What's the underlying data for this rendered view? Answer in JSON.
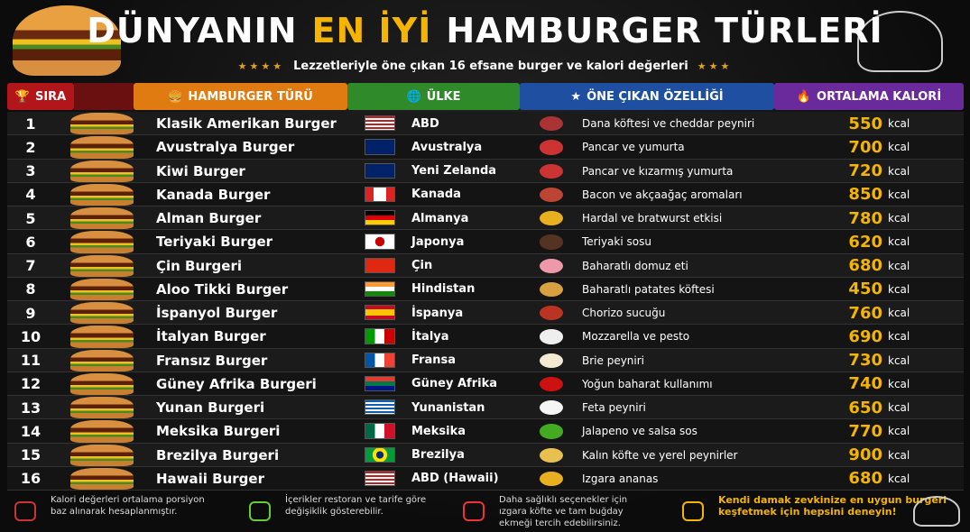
{
  "header": {
    "title_part1": "DÜNYANIN",
    "title_highlight": "EN İYİ",
    "title_part2": "HAMBURGER TÜRLERİ",
    "subtitle": "Lezzetleriyle öne çıkan 16 efsane burger ve kalori değerleri"
  },
  "table": {
    "columns": [
      "SIRA",
      "HAMBURGER TÜRÜ",
      "ÜLKE",
      "ÖNE ÇIKAN ÖZELLİĞİ",
      "ORTALAMA KALORİ"
    ],
    "calorie_unit": "kcal",
    "rows": [
      [
        1,
        "Klasik Amerikan Burger",
        "ABD",
        "Dana köftesi ve cheddar peyniri",
        550
      ],
      [
        2,
        "Avustralya Burger",
        "Avustralya",
        "Pancar ve yumurta",
        700
      ],
      [
        3,
        "Kiwi Burger",
        "Yeni Zelanda",
        "Pancar ve kızarmış yumurta",
        720
      ],
      [
        4,
        "Kanada Burger",
        "Kanada",
        "Bacon ve akçaağaç aromaları",
        850
      ],
      [
        5,
        "Alman Burger",
        "Almanya",
        "Hardal ve bratwurst etkisi",
        780
      ],
      [
        6,
        "Teriyaki Burger",
        "Japonya",
        "Teriyaki sosu",
        620
      ],
      [
        7,
        "Çin Burgeri",
        "Çin",
        "Baharatlı domuz eti",
        680
      ],
      [
        8,
        "Aloo Tikki Burger",
        "Hindistan",
        "Baharatlı patates köftesi",
        450
      ],
      [
        9,
        "İspanyol Burger",
        "İspanya",
        "Chorizo sucuğu",
        760
      ],
      [
        10,
        "İtalyan Burger",
        "İtalya",
        "Mozzarella ve pesto",
        690
      ],
      [
        11,
        "Fransız Burger",
        "Fransa",
        "Brie peyniri",
        730
      ],
      [
        12,
        "Güney Afrika Burgeri",
        "Güney Afrika",
        "Yoğun baharat kullanımı",
        740
      ],
      [
        13,
        "Yunan Burgeri",
        "Yunanistan",
        "Feta peyniri",
        650
      ],
      [
        14,
        "Meksika Burgeri",
        "Meksika",
        "Jalapeno ve salsa sos",
        770
      ],
      [
        15,
        "Brezilya Burgeri",
        "Brezilya",
        "Kalın köfte ve yerel peynirler",
        900
      ],
      [
        16,
        "Hawaii Burger",
        "ABD (Hawaii)",
        "Izgara ananas",
        680
      ]
    ]
  },
  "footer": {
    "notes": [
      "Kalori değerleri ortalama porsiyon baz alınarak hesaplanmıştır.",
      "İçerikler restoran ve tarife göre değişiklik gösterebilir.",
      "Daha sağlıklı seçenekler için ızgara köfte ve tam buğday ekmeği tercih edebilirsiniz.",
      "Kendi damak zevkinize en uygun burgeri keşfetmek için hepsini deneyin!"
    ]
  }
}
